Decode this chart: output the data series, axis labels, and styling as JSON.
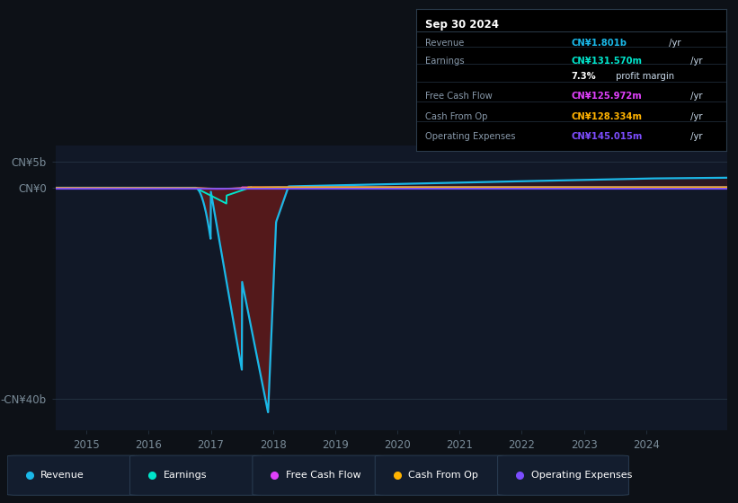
{
  "background_color": "#0d1117",
  "plot_bg_color": "#111827",
  "yticks_labels": [
    "CN¥5b",
    "CN¥0",
    "-CN¥40b"
  ],
  "ytick_values": [
    5000000000,
    0,
    -40000000000
  ],
  "ylim": [
    -46000000000,
    8000000000
  ],
  "xlim": [
    2014.5,
    2025.3
  ],
  "xticks": [
    2015,
    2016,
    2017,
    2018,
    2019,
    2020,
    2021,
    2022,
    2023,
    2024
  ],
  "revenue_color": "#1ab8e8",
  "earnings_color": "#00e5cc",
  "fcf_color": "#e040fb",
  "cashfromop_color": "#ffb300",
  "opex_color": "#7c4dff",
  "fill_neg_color": "#5c1a1a",
  "grid_color": "#1e2d3d",
  "zero_line_color": "#2a3a4a",
  "tick_color": "#7a8c99",
  "legend_items": [
    {
      "label": "Revenue",
      "color": "#1ab8e8"
    },
    {
      "label": "Earnings",
      "color": "#00e5cc"
    },
    {
      "label": "Free Cash Flow",
      "color": "#e040fb"
    },
    {
      "label": "Cash From Op",
      "color": "#ffb300"
    },
    {
      "label": "Operating Expenses",
      "color": "#7c4dff"
    }
  ],
  "info_date": "Sep 30 2024",
  "info_rows": [
    {
      "label": "Revenue",
      "value": "CN¥1.801b",
      "unit": " /yr",
      "vc": "#1ab8e8",
      "bold": true
    },
    {
      "label": "Earnings",
      "value": "CN¥131.570m",
      "unit": " /yr",
      "vc": "#00e5cc",
      "bold": true
    },
    {
      "label": "",
      "value": "7.3%",
      "unit": " profit margin",
      "vc": "#ffffff",
      "bold": true
    },
    {
      "label": "Free Cash Flow",
      "value": "CN¥125.972m",
      "unit": " /yr",
      "vc": "#e040fb",
      "bold": true
    },
    {
      "label": "Cash From Op",
      "value": "CN¥128.334m",
      "unit": " /yr",
      "vc": "#ffb300",
      "bold": true
    },
    {
      "label": "Operating Expenses",
      "value": "CN¥145.015m",
      "unit": " /yr",
      "vc": "#7c4dff",
      "bold": true
    }
  ]
}
